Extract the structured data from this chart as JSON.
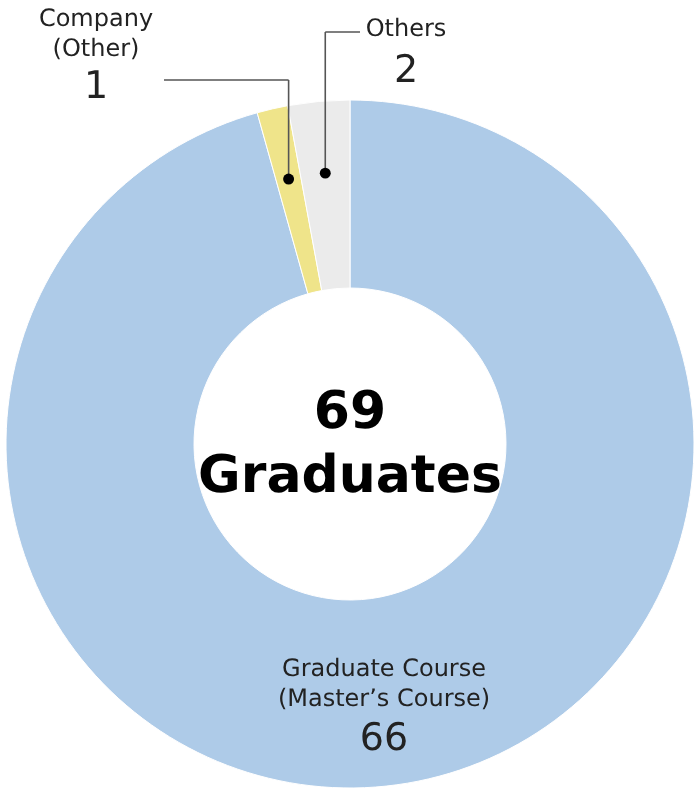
{
  "chart_data": {
    "type": "donut",
    "categories": [
      "Graduate Course (Master’s Course)",
      "Company (Other)",
      "Others"
    ],
    "values": [
      66,
      1,
      2
    ],
    "colors": [
      "#aecbe8",
      "#efe48a",
      "#ebebeb"
    ],
    "data_labels": true,
    "annotations": [
      "69",
      "Graduates"
    ]
  }
}
